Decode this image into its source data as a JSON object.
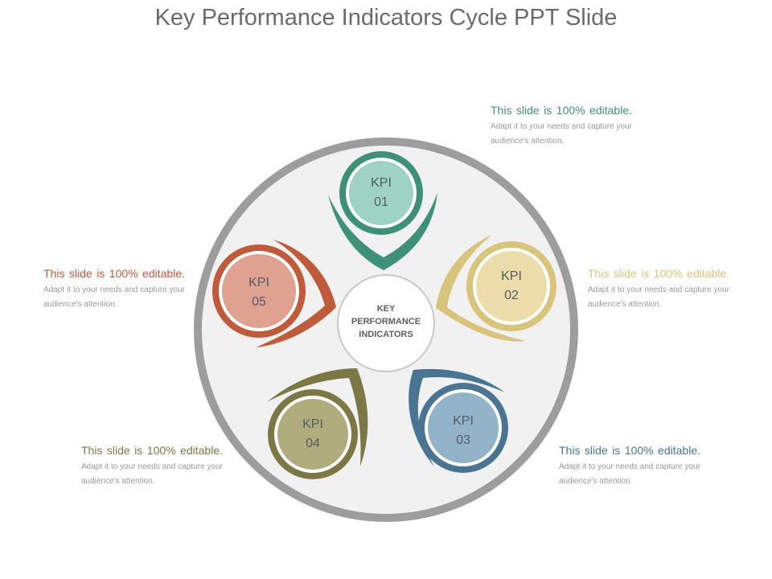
{
  "slide": {
    "title": "Key Performance Indicators Cycle PPT Slide"
  },
  "center": {
    "line1": "KEY",
    "line2": "PERFORMANCE",
    "line3": "INDICATORS"
  },
  "nodes": [
    {
      "label": "KPI",
      "number": "01",
      "color": "#3f9078",
      "fill": "#9ed3c4"
    },
    {
      "label": "KPI",
      "number": "02",
      "color": "#d9c47c",
      "fill": "#ecdcaa"
    },
    {
      "label": "KPI",
      "number": "03",
      "color": "#4a7592",
      "fill": "#93b4c8"
    },
    {
      "label": "KPI",
      "number": "04",
      "color": "#7b7845",
      "fill": "#b0ac7e"
    },
    {
      "label": "KPI",
      "number": "05",
      "color": "#bf5a3a",
      "fill": "#dfa190"
    }
  ],
  "texts": [
    {
      "head": "This slide is 100% editable.",
      "body": "Adapt it to your needs and capture your audience's attention.",
      "color": "#3f9078"
    },
    {
      "head": "This slide is 100% editable.",
      "body": "Adapt it to your needs and capture your audience's attention.",
      "color": "#d9c47c"
    },
    {
      "head": "This slide is 100% editable.",
      "body": "Adapt it to your needs and capture your audience's attention.",
      "color": "#4a7592"
    },
    {
      "head": "This slide is 100% editable.",
      "body": "Adapt it to your needs and capture your audience's attention.",
      "color": "#7b7845"
    },
    {
      "head": "This slide is 100% editable.",
      "body": "Adapt it to your needs and capture your audience's attention.",
      "color": "#bf5a3a"
    }
  ]
}
